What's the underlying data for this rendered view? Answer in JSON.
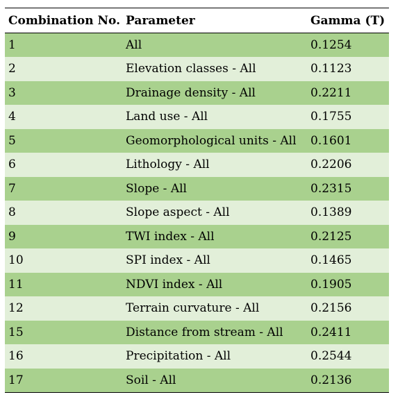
{
  "table": {
    "headers": [
      "Combination No.",
      "Parameter",
      "Gamma (T)"
    ],
    "rows": [
      [
        "1",
        "All",
        "0.1254"
      ],
      [
        "2",
        "Elevation classes - All",
        "0.1123"
      ],
      [
        "3",
        "Drainage density - All",
        "0.2211"
      ],
      [
        "4",
        "Land use - All",
        "0.1755"
      ],
      [
        "5",
        "Geomorphological units - All",
        "0.1601"
      ],
      [
        "6",
        "Lithology - All",
        "0.2206"
      ],
      [
        "7",
        "Slope - All",
        "0.2315"
      ],
      [
        "8",
        "Slope aspect - All",
        "0.1389"
      ],
      [
        "9",
        "TWI index - All",
        "0.2125"
      ],
      [
        "10",
        "SPI index - All",
        "0.1465"
      ],
      [
        "11",
        "NDVI index - All",
        "0.1905"
      ],
      [
        "12",
        "Terrain curvature - All",
        "0.2156"
      ],
      [
        "15",
        "Distance from stream - All",
        "0.2411"
      ],
      [
        "16",
        "Precipitation - All",
        "0.2544"
      ],
      [
        "17",
        "Soil - All",
        "0.2136"
      ]
    ],
    "colors": {
      "row_dark": "#a9d18e",
      "row_light": "#e2efd9",
      "header_bg": "#ffffff",
      "rule": "#000000"
    }
  }
}
